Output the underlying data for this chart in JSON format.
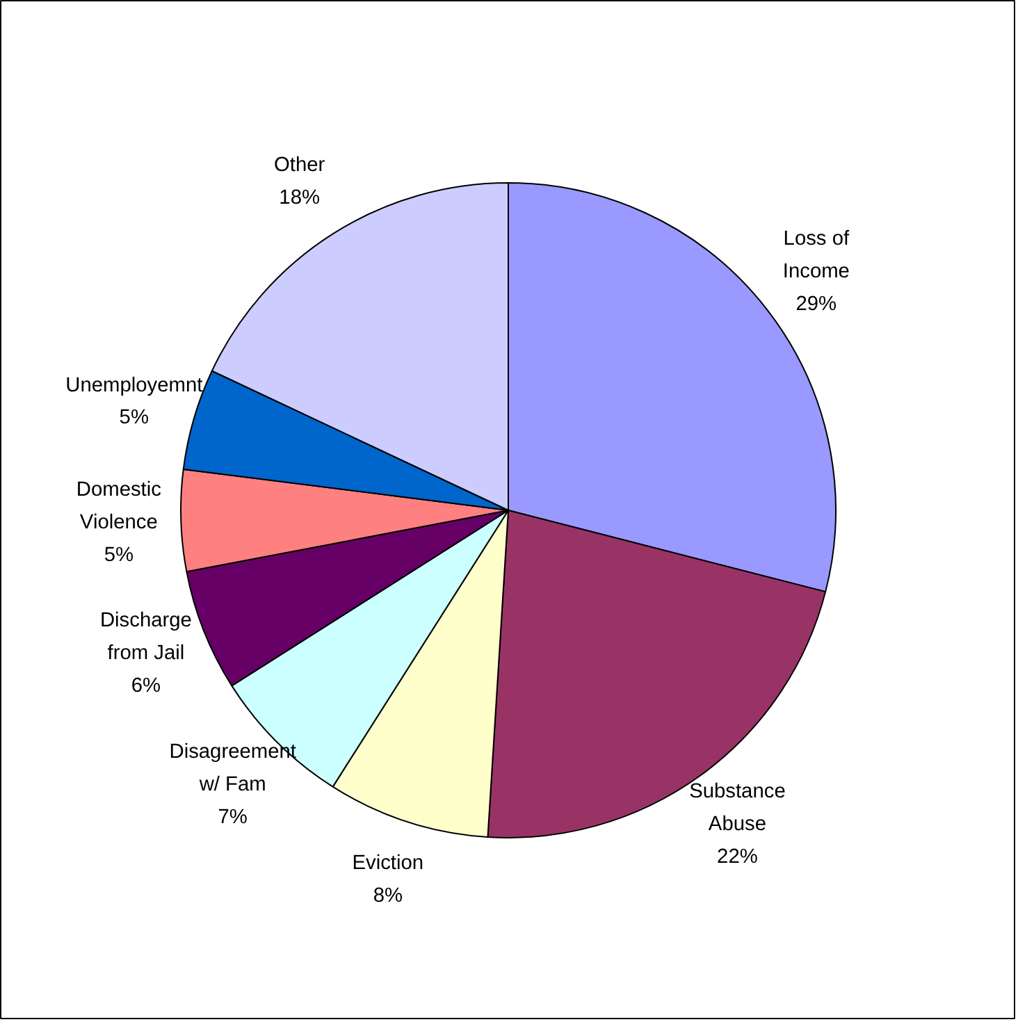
{
  "chart_data": {
    "type": "pie",
    "categories": [
      "Loss of Income",
      "Substance Abuse",
      "Eviction",
      "Disagreement w/ Fam",
      "Discharge from Jail",
      "Domestic Violence",
      "Unemployemnt",
      "Other"
    ],
    "values": [
      29,
      22,
      8,
      7,
      6,
      5,
      5,
      18
    ],
    "value_labels": [
      "29%",
      "22%",
      "8%",
      "7%",
      "6%",
      "5%",
      "5%",
      "18%"
    ],
    "colors": [
      "#9999ff",
      "#993366",
      "#ffffcc",
      "#ccffff",
      "#660066",
      "#ff8080",
      "#0066cc",
      "#ccccff"
    ]
  }
}
